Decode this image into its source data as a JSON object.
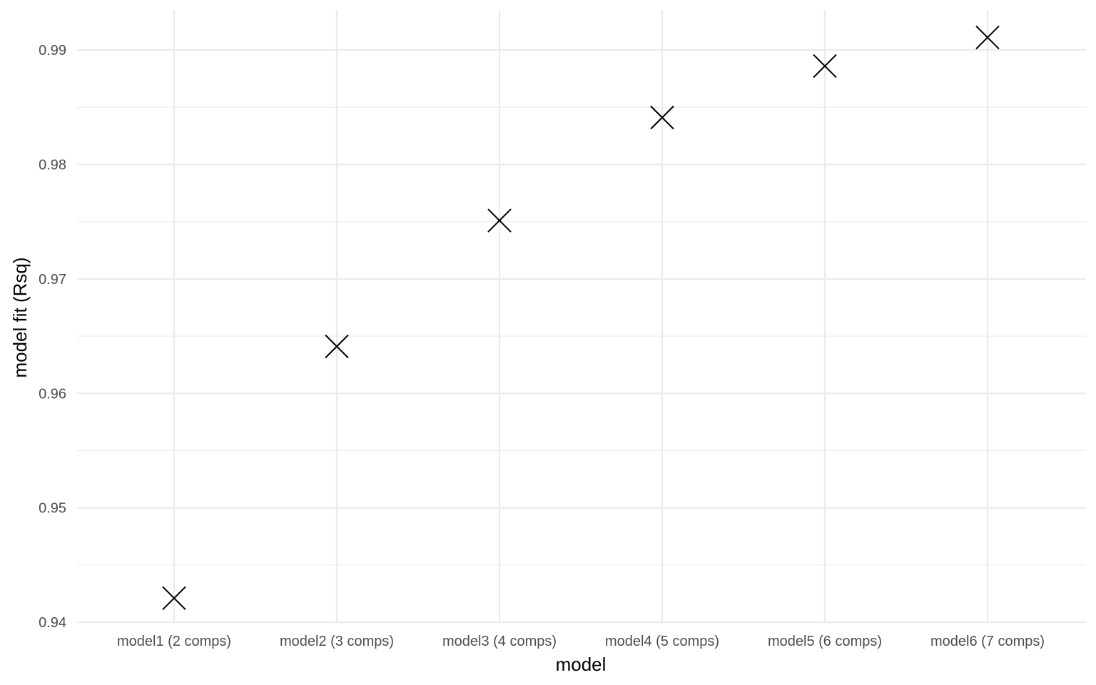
{
  "chart_data": {
    "type": "scatter",
    "title": "",
    "xlabel": "model",
    "ylabel": "model fit (Rsq)",
    "categories": [
      "model1 (2 comps)",
      "model2 (3 comps)",
      "model3 (4 comps)",
      "model4 (5 comps)",
      "model5 (6 comps)",
      "model6 (7 comps)"
    ],
    "values": [
      0.9421,
      0.9641,
      0.9751,
      0.9841,
      0.9886,
      0.9911
    ],
    "ylim": [
      0.94,
      0.9935
    ],
    "yticks": [
      0.94,
      0.95,
      0.96,
      0.97,
      0.98,
      0.99
    ],
    "ytick_labels": [
      "0.94",
      "0.95",
      "0.96",
      "0.97",
      "0.98",
      "0.99"
    ],
    "marker": "x",
    "marker_color": "#000000",
    "grid": true,
    "legend": "none"
  }
}
